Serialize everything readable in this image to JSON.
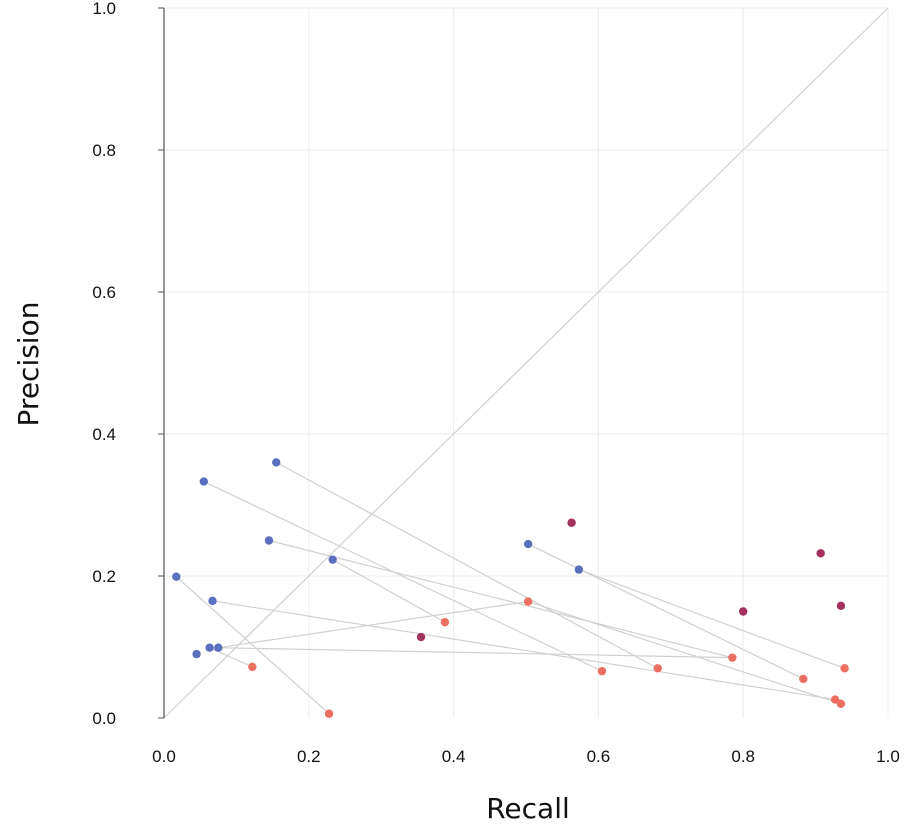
{
  "chart_data": {
    "type": "scatter",
    "title": "",
    "xlabel": "Recall",
    "ylabel": "Precision",
    "xlim": [
      0.0,
      1.0
    ],
    "ylim": [
      0.0,
      1.0
    ],
    "x_ticks": [
      "0.0",
      "0.2",
      "0.4",
      "0.6",
      "0.8",
      "1.0"
    ],
    "y_ticks": [
      "0.0",
      "0.2",
      "0.4",
      "0.6",
      "0.8",
      "1.0"
    ],
    "grid": true,
    "legend": "none",
    "reference_line": {
      "from": [
        0.0,
        0.0
      ],
      "to": [
        1.0,
        1.0
      ]
    },
    "colors": {
      "blue": "#5b6fbf",
      "red": "#ec6f62",
      "purple": "#a3325f",
      "connector": "#d0d0d0",
      "grid": "#ececec",
      "axis": "#555555"
    },
    "series": [
      {
        "color_key": "blue",
        "points": [
          {
            "x": 0.155,
            "y": 0.36
          },
          {
            "x": 0.055,
            "y": 0.333
          },
          {
            "x": 0.145,
            "y": 0.25
          },
          {
            "x": 0.233,
            "y": 0.223
          },
          {
            "x": 0.017,
            "y": 0.199
          },
          {
            "x": 0.067,
            "y": 0.165
          },
          {
            "x": 0.063,
            "y": 0.099
          },
          {
            "x": 0.075,
            "y": 0.099
          },
          {
            "x": 0.045,
            "y": 0.09
          },
          {
            "x": 0.503,
            "y": 0.245
          },
          {
            "x": 0.573,
            "y": 0.209
          }
        ]
      },
      {
        "color_key": "red",
        "points": [
          {
            "x": 0.122,
            "y": 0.072
          },
          {
            "x": 0.228,
            "y": 0.006
          },
          {
            "x": 0.388,
            "y": 0.135
          },
          {
            "x": 0.503,
            "y": 0.164
          },
          {
            "x": 0.605,
            "y": 0.066
          },
          {
            "x": 0.682,
            "y": 0.07
          },
          {
            "x": 0.785,
            "y": 0.085
          },
          {
            "x": 0.883,
            "y": 0.055
          },
          {
            "x": 0.927,
            "y": 0.026
          },
          {
            "x": 0.935,
            "y": 0.02
          },
          {
            "x": 0.94,
            "y": 0.07
          }
        ]
      },
      {
        "color_key": "purple",
        "points": [
          {
            "x": 0.355,
            "y": 0.114
          },
          {
            "x": 0.563,
            "y": 0.275
          },
          {
            "x": 0.8,
            "y": 0.15
          },
          {
            "x": 0.907,
            "y": 0.232
          },
          {
            "x": 0.935,
            "y": 0.158
          }
        ]
      }
    ],
    "connectors": [
      {
        "from": [
          0.155,
          0.36
        ],
        "to": [
          0.682,
          0.07
        ]
      },
      {
        "from": [
          0.055,
          0.333
        ],
        "to": [
          0.605,
          0.066
        ]
      },
      {
        "from": [
          0.145,
          0.25
        ],
        "to": [
          0.785,
          0.085
        ]
      },
      {
        "from": [
          0.233,
          0.223
        ],
        "to": [
          0.388,
          0.135
        ]
      },
      {
        "from": [
          0.017,
          0.199
        ],
        "to": [
          0.228,
          0.006
        ]
      },
      {
        "from": [
          0.067,
          0.165
        ],
        "to": [
          0.927,
          0.026
        ]
      },
      {
        "from": [
          0.063,
          0.099
        ],
        "to": [
          0.122,
          0.072
        ]
      },
      {
        "from": [
          0.075,
          0.099
        ],
        "to": [
          0.503,
          0.164
        ]
      },
      {
        "from": [
          0.075,
          0.099
        ],
        "to": [
          0.785,
          0.085
        ]
      },
      {
        "from": [
          0.503,
          0.245
        ],
        "to": [
          0.883,
          0.055
        ]
      },
      {
        "from": [
          0.573,
          0.209
        ],
        "to": [
          0.94,
          0.07
        ]
      },
      {
        "from": [
          0.503,
          0.164
        ],
        "to": [
          0.935,
          0.02
        ]
      }
    ]
  }
}
